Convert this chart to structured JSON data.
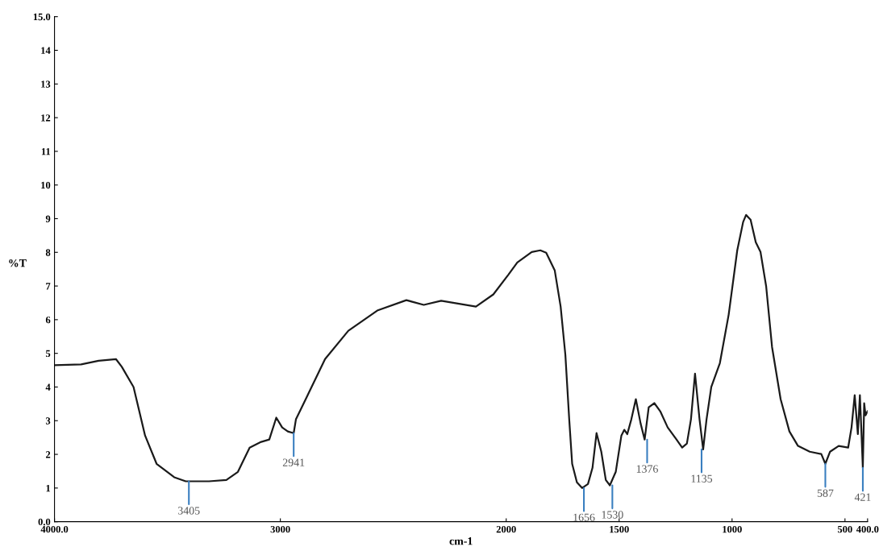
{
  "chart_data": {
    "type": "line",
    "xlabel": "cm-1",
    "ylabel": "%T",
    "xlim": [
      4000,
      400
    ],
    "xticks": [
      {
        "value": 4000,
        "label": "4000.0"
      },
      3000,
      2000,
      1500,
      1000,
      500,
      {
        "value": 400,
        "label": "400.0"
      }
    ],
    "ylim": [
      0,
      15
    ],
    "yticks": [
      {
        "value": 0,
        "label": "0.0"
      },
      1,
      2,
      3,
      4,
      5,
      6,
      7,
      8,
      9,
      10,
      11,
      12,
      13,
      14,
      {
        "value": 15,
        "label": "15.0"
      }
    ],
    "grid": false,
    "marker": "none",
    "line_style": "solid",
    "series": [
      {
        "color": "#1a1a1a",
        "x": [
          4000,
          3882,
          3805,
          3728,
          3702,
          3650,
          3599,
          3548,
          3470,
          3419,
          3316,
          3239,
          3188,
          3136,
          3085,
          3049,
          3018,
          2992,
          2967,
          2941,
          2931,
          2879,
          2802,
          2699,
          2571,
          2442,
          2365,
          2288,
          2134,
          2057,
          1990,
          1951,
          1887,
          1849,
          1823,
          1785,
          1759,
          1738,
          1721,
          1708,
          1687,
          1664,
          1638,
          1618,
          1600,
          1579,
          1559,
          1541,
          1515,
          1490,
          1477,
          1464,
          1446,
          1426,
          1405,
          1387,
          1369,
          1344,
          1318,
          1285,
          1246,
          1221,
          1200,
          1182,
          1164,
          1144,
          1128,
          1113,
          1092,
          1054,
          1015,
          977,
          951,
          938,
          918,
          895,
          874,
          849,
          823,
          785,
          746,
          708,
          656,
          605,
          587,
          566,
          528,
          486,
          471,
          457,
          443,
          434,
          428,
          421,
          415,
          409,
          400
        ],
        "values": [
          4.65,
          4.67,
          4.78,
          4.83,
          4.6,
          4.0,
          2.56,
          1.72,
          1.32,
          1.2,
          1.2,
          1.24,
          1.48,
          2.2,
          2.37,
          2.44,
          3.09,
          2.8,
          2.68,
          2.63,
          3.04,
          3.76,
          4.83,
          5.67,
          6.27,
          6.58,
          6.44,
          6.56,
          6.39,
          6.75,
          7.34,
          7.7,
          8.01,
          8.06,
          7.99,
          7.46,
          6.39,
          4.95,
          3.04,
          1.72,
          1.17,
          1.0,
          1.12,
          1.6,
          2.63,
          2.08,
          1.24,
          1.08,
          1.48,
          2.56,
          2.73,
          2.6,
          3.04,
          3.64,
          2.92,
          2.44,
          3.4,
          3.52,
          3.28,
          2.8,
          2.44,
          2.2,
          2.32,
          3.04,
          4.4,
          3.04,
          2.15,
          3.04,
          4.0,
          4.71,
          6.15,
          8.06,
          8.9,
          9.11,
          8.97,
          8.3,
          8.01,
          6.99,
          5.19,
          3.64,
          2.68,
          2.25,
          2.08,
          2.01,
          1.72,
          2.08,
          2.25,
          2.2,
          2.8,
          3.76,
          2.6,
          3.76,
          2.8,
          1.6,
          3.52,
          3.16,
          3.28
        ]
      }
    ],
    "annotations": [
      {
        "text": "3405",
        "x": 3405,
        "y": 1.2
      },
      {
        "text": "2941",
        "x": 2941,
        "y": 2.63
      },
      {
        "text": "1656",
        "x": 1656,
        "y": 1.0
      },
      {
        "text": "1530",
        "x": 1530,
        "y": 1.08
      },
      {
        "text": "1376",
        "x": 1376,
        "y": 2.44
      },
      {
        "text": "1135",
        "x": 1135,
        "y": 2.15
      },
      {
        "text": "587",
        "x": 587,
        "y": 1.72
      },
      {
        "text": "421",
        "x": 421,
        "y": 1.6
      }
    ]
  }
}
